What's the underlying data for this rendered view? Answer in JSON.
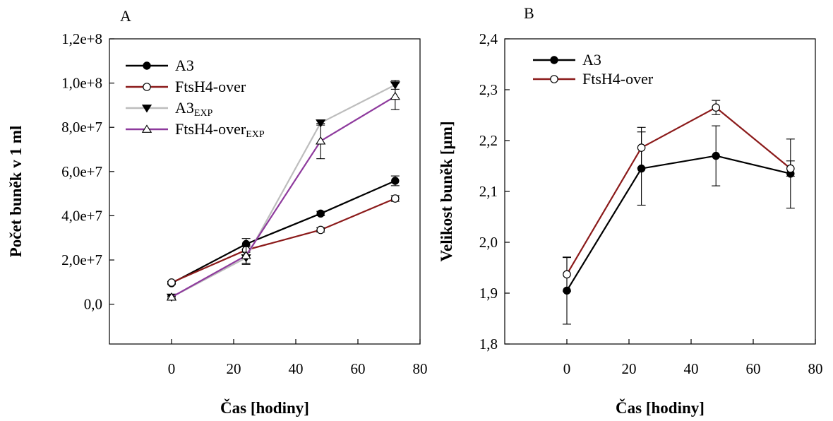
{
  "chart_data": [
    {
      "type": "line",
      "panel_label": "A",
      "xlabel": "Čas [hodiny]",
      "ylabel": "Počet buněk v 1 ml",
      "xlim": [
        -20,
        80
      ],
      "ylim": [
        -18000000.0,
        120000000.0
      ],
      "xticks": [
        0,
        20,
        40,
        60,
        80
      ],
      "xtick_labels": [
        "0",
        "20",
        "40",
        "60",
        "80"
      ],
      "yticks": [
        0,
        20000000.0,
        40000000.0,
        60000000.0,
        80000000.0,
        100000000.0,
        120000000.0
      ],
      "ytick_labels": [
        "0,0",
        "2,0e+7",
        "4,0e+7",
        "6,0e+7",
        "8,0e+7",
        "1,0e+8",
        "1,2e+8"
      ],
      "legend_position": "top-left",
      "grid": false,
      "x": [
        0,
        24,
        48,
        72
      ],
      "series": [
        {
          "name": "A3",
          "name_sub": "",
          "color": "#000000",
          "marker": "filled-circle",
          "values": [
            9500000.0,
            27200000.0,
            41000000.0,
            55800000.0
          ],
          "errors": [
            600000.0,
            2500000.0,
            1000000.0,
            2200000.0
          ]
        },
        {
          "name": "FtsH4-over",
          "name_sub": "",
          "color": "#8b1a1a",
          "marker": "open-circle",
          "values": [
            9800000.0,
            24500000.0,
            33600000.0,
            47800000.0
          ],
          "errors": [
            500000.0,
            2200000.0,
            1000000.0,
            1300000.0
          ]
        },
        {
          "name": "A3",
          "name_sub": "EXP",
          "color": "#bdbdbd",
          "marker": "filled-triangle-down",
          "values": [
            3200000.0,
            21000000.0,
            82000000.0,
            99200000.0
          ],
          "errors": [
            400000.0,
            2500000.0,
            1000000.0,
            2000000.0
          ]
        },
        {
          "name": "FtsH4-over",
          "name_sub": "EXP",
          "color": "#8e3a9d",
          "marker": "open-triangle-up",
          "values": [
            3200000.0,
            22000000.0,
            73800000.0,
            94000000.0
          ],
          "errors": [
            400000.0,
            4000000.0,
            8000000.0,
            6000000.0
          ]
        }
      ]
    },
    {
      "type": "line",
      "panel_label": "B",
      "xlabel": "Čas [hodiny]",
      "ylabel": "Velikost buněk [µm]",
      "xlim": [
        -20,
        80
      ],
      "ylim": [
        1.8,
        2.4
      ],
      "xticks": [
        0,
        20,
        40,
        60,
        80
      ],
      "xtick_labels": [
        "0",
        "20",
        "40",
        "60",
        "80"
      ],
      "yticks": [
        1.8,
        1.9,
        2.0,
        2.1,
        2.2,
        2.3,
        2.4
      ],
      "ytick_labels": [
        "1,8",
        "1,9",
        "2,0",
        "2,1",
        "2,2",
        "2,3",
        "2,4"
      ],
      "legend_position": "top-left",
      "grid": false,
      "x": [
        0,
        24,
        48,
        72
      ],
      "series": [
        {
          "name": "A3",
          "name_sub": "",
          "color": "#000000",
          "marker": "filled-circle",
          "values": [
            1.905,
            2.145,
            2.17,
            2.135
          ],
          "errors": [
            0.066,
            0.072,
            0.059,
            0.068
          ]
        },
        {
          "name": "FtsH4-over",
          "name_sub": "",
          "color": "#8b1a1a",
          "marker": "open-circle",
          "values": [
            1.937,
            2.186,
            2.265,
            2.145
          ],
          "errors": [
            0.033,
            0.04,
            0.014,
            0.015
          ]
        }
      ]
    }
  ]
}
